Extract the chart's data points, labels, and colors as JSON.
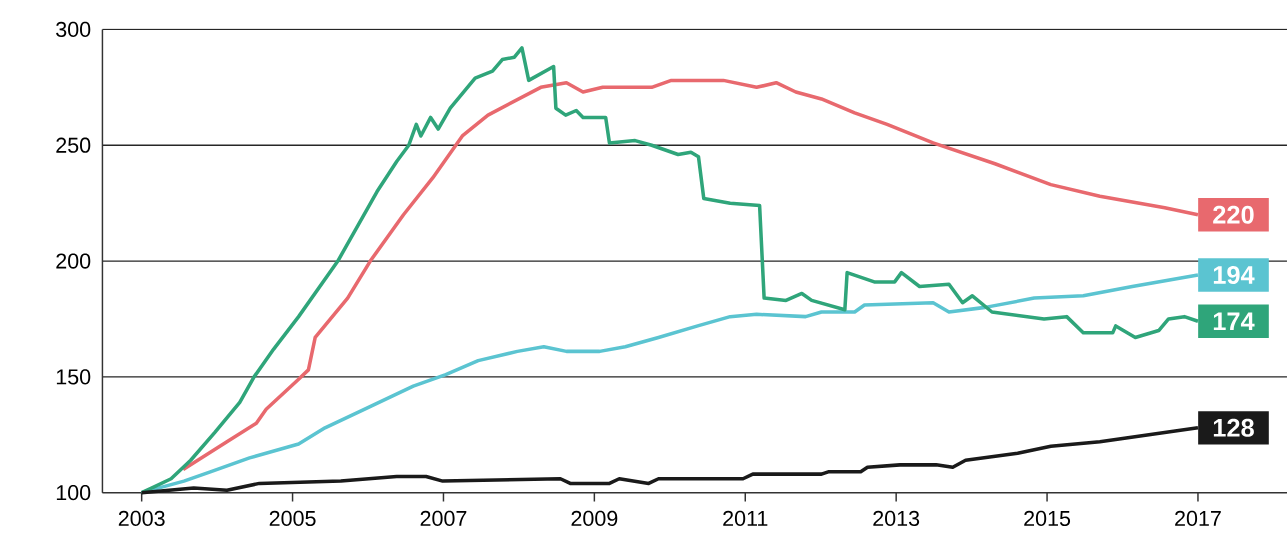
{
  "chart_data": {
    "type": "line",
    "xlim": [
      2002.48,
      2018.18
    ],
    "ylim": [
      100,
      300
    ],
    "xticks": [
      2003,
      2005,
      2007,
      2009,
      2011,
      2013,
      2015,
      2017
    ],
    "yticks": [
      100,
      150,
      200,
      250,
      300
    ],
    "grid": "y",
    "series": [
      {
        "color": "#e8696e",
        "x": [
          2003.55,
          2004.13,
          2004.52,
          2004.65,
          2005.08,
          2005.21,
          2005.3,
          2005.73,
          2006.03,
          2006.47,
          2006.86,
          2007.25,
          2007.59,
          2008.29,
          2008.63,
          2008.85,
          2009.11,
          2009.76,
          2010.02,
          2010.71,
          2011.15,
          2011.41,
          2011.67,
          2012.01,
          2012.45,
          2012.88,
          2013.49,
          2014.31,
          2015.05,
          2015.7,
          2016.56,
          2017.0
        ],
        "values": [
          110,
          122,
          130,
          136,
          149,
          153,
          167,
          184,
          200,
          220,
          236,
          254,
          263,
          275,
          277,
          273,
          275,
          275,
          278,
          278,
          275,
          277,
          273,
          270,
          264,
          259,
          251,
          242,
          233,
          228,
          223,
          220
        ],
        "value_labels": [
          null,
          null,
          null,
          null,
          null,
          null,
          null,
          null,
          null,
          null,
          null,
          null,
          null,
          null,
          null,
          null,
          null,
          null,
          null,
          null,
          null,
          null,
          null,
          null,
          null,
          null,
          null,
          null,
          null,
          null,
          null,
          "220"
        ]
      },
      {
        "color": "#5bc4d1",
        "x": [
          2003.0,
          2003.56,
          2003.91,
          2004.43,
          2005.08,
          2005.43,
          2005.95,
          2006.6,
          2007.03,
          2007.46,
          2007.98,
          2008.33,
          2008.63,
          2009.07,
          2009.41,
          2009.85,
          2010.37,
          2010.8,
          2011.15,
          2011.8,
          2012.01,
          2012.45,
          2012.58,
          2013.49,
          2013.7,
          2014.18,
          2014.83,
          2015.48,
          2016.13,
          2017.0
        ],
        "values": [
          100,
          105,
          109,
          115,
          121,
          128,
          136,
          146,
          151,
          157,
          161,
          163,
          161,
          161,
          163,
          167,
          172,
          176,
          177,
          176,
          178,
          178,
          181,
          182,
          178,
          180,
          184,
          185,
          189,
          194
        ],
        "value_labels": [
          null,
          null,
          null,
          null,
          null,
          null,
          null,
          null,
          null,
          null,
          null,
          null,
          null,
          null,
          null,
          null,
          null,
          null,
          null,
          null,
          null,
          null,
          null,
          null,
          null,
          null,
          null,
          null,
          null,
          "194"
        ]
      },
      {
        "color": "#2fa57a",
        "x": [
          2003.0,
          2003.13,
          2003.39,
          2003.65,
          2003.97,
          2004.3,
          2004.49,
          2004.75,
          2005.08,
          2005.6,
          2006.12,
          2006.38,
          2006.54,
          2006.64,
          2006.7,
          2006.83,
          2006.93,
          2007.09,
          2007.42,
          2007.65,
          2007.78,
          2007.94,
          2008.04,
          2008.13,
          2008.46,
          2008.49,
          2008.62,
          2008.76,
          2008.85,
          2009.15,
          2009.2,
          2009.54,
          2009.76,
          2010.11,
          2010.28,
          2010.38,
          2010.45,
          2010.8,
          2011.19,
          2011.25,
          2011.54,
          2011.75,
          2011.88,
          2012.32,
          2012.35,
          2012.71,
          2012.98,
          2013.07,
          2013.31,
          2013.7,
          2013.88,
          2014.01,
          2014.27,
          2014.96,
          2015.26,
          2015.48,
          2015.87,
          2015.91,
          2016.17,
          2016.48,
          2016.61,
          2016.82,
          2017.0
        ],
        "values": [
          100,
          102,
          106,
          114,
          126,
          139,
          150,
          162,
          176,
          200,
          230,
          243,
          250,
          259,
          254,
          262,
          257,
          266,
          279,
          282,
          287,
          288,
          292,
          278,
          284,
          266,
          263,
          265,
          262,
          262,
          251,
          252,
          250,
          246,
          247,
          245,
          227,
          225,
          224,
          184,
          183,
          186,
          183,
          179,
          195,
          191,
          191,
          195,
          189,
          190,
          182,
          185,
          178,
          175,
          176,
          169,
          169,
          172,
          167,
          170,
          175,
          176,
          174
        ],
        "value_labels": [
          null,
          null,
          null,
          null,
          null,
          null,
          null,
          null,
          null,
          null,
          null,
          null,
          null,
          null,
          null,
          null,
          null,
          null,
          null,
          null,
          null,
          null,
          null,
          null,
          null,
          null,
          null,
          null,
          null,
          null,
          null,
          null,
          null,
          null,
          null,
          null,
          null,
          null,
          null,
          null,
          null,
          null,
          null,
          null,
          null,
          null,
          null,
          null,
          null,
          null,
          null,
          null,
          null,
          null,
          null,
          null,
          null,
          null,
          null,
          null,
          null,
          null,
          "174"
        ]
      },
      {
        "color": "#1a1a1a",
        "x": [
          2003.0,
          2003.69,
          2004.13,
          2004.56,
          2005.64,
          2006.38,
          2006.77,
          2006.99,
          2008.55,
          2008.68,
          2009.2,
          2009.33,
          2009.72,
          2009.85,
          2010.97,
          2011.1,
          2012.01,
          2012.1,
          2012.53,
          2012.62,
          2013.05,
          2013.53,
          2013.75,
          2013.92,
          2014.61,
          2015.05,
          2015.7,
          2016.35,
          2017.0
        ],
        "values": [
          100,
          102,
          101,
          104,
          105,
          107,
          107,
          105,
          106,
          104,
          104,
          106,
          104,
          106,
          106,
          108,
          108,
          109,
          109,
          111,
          112,
          112,
          111,
          114,
          117,
          120,
          122,
          125,
          128
        ],
        "value_labels": [
          null,
          null,
          null,
          null,
          null,
          null,
          null,
          null,
          null,
          null,
          null,
          null,
          null,
          null,
          null,
          null,
          null,
          null,
          null,
          null,
          null,
          null,
          null,
          null,
          null,
          null,
          null,
          null,
          "128"
        ]
      }
    ]
  }
}
